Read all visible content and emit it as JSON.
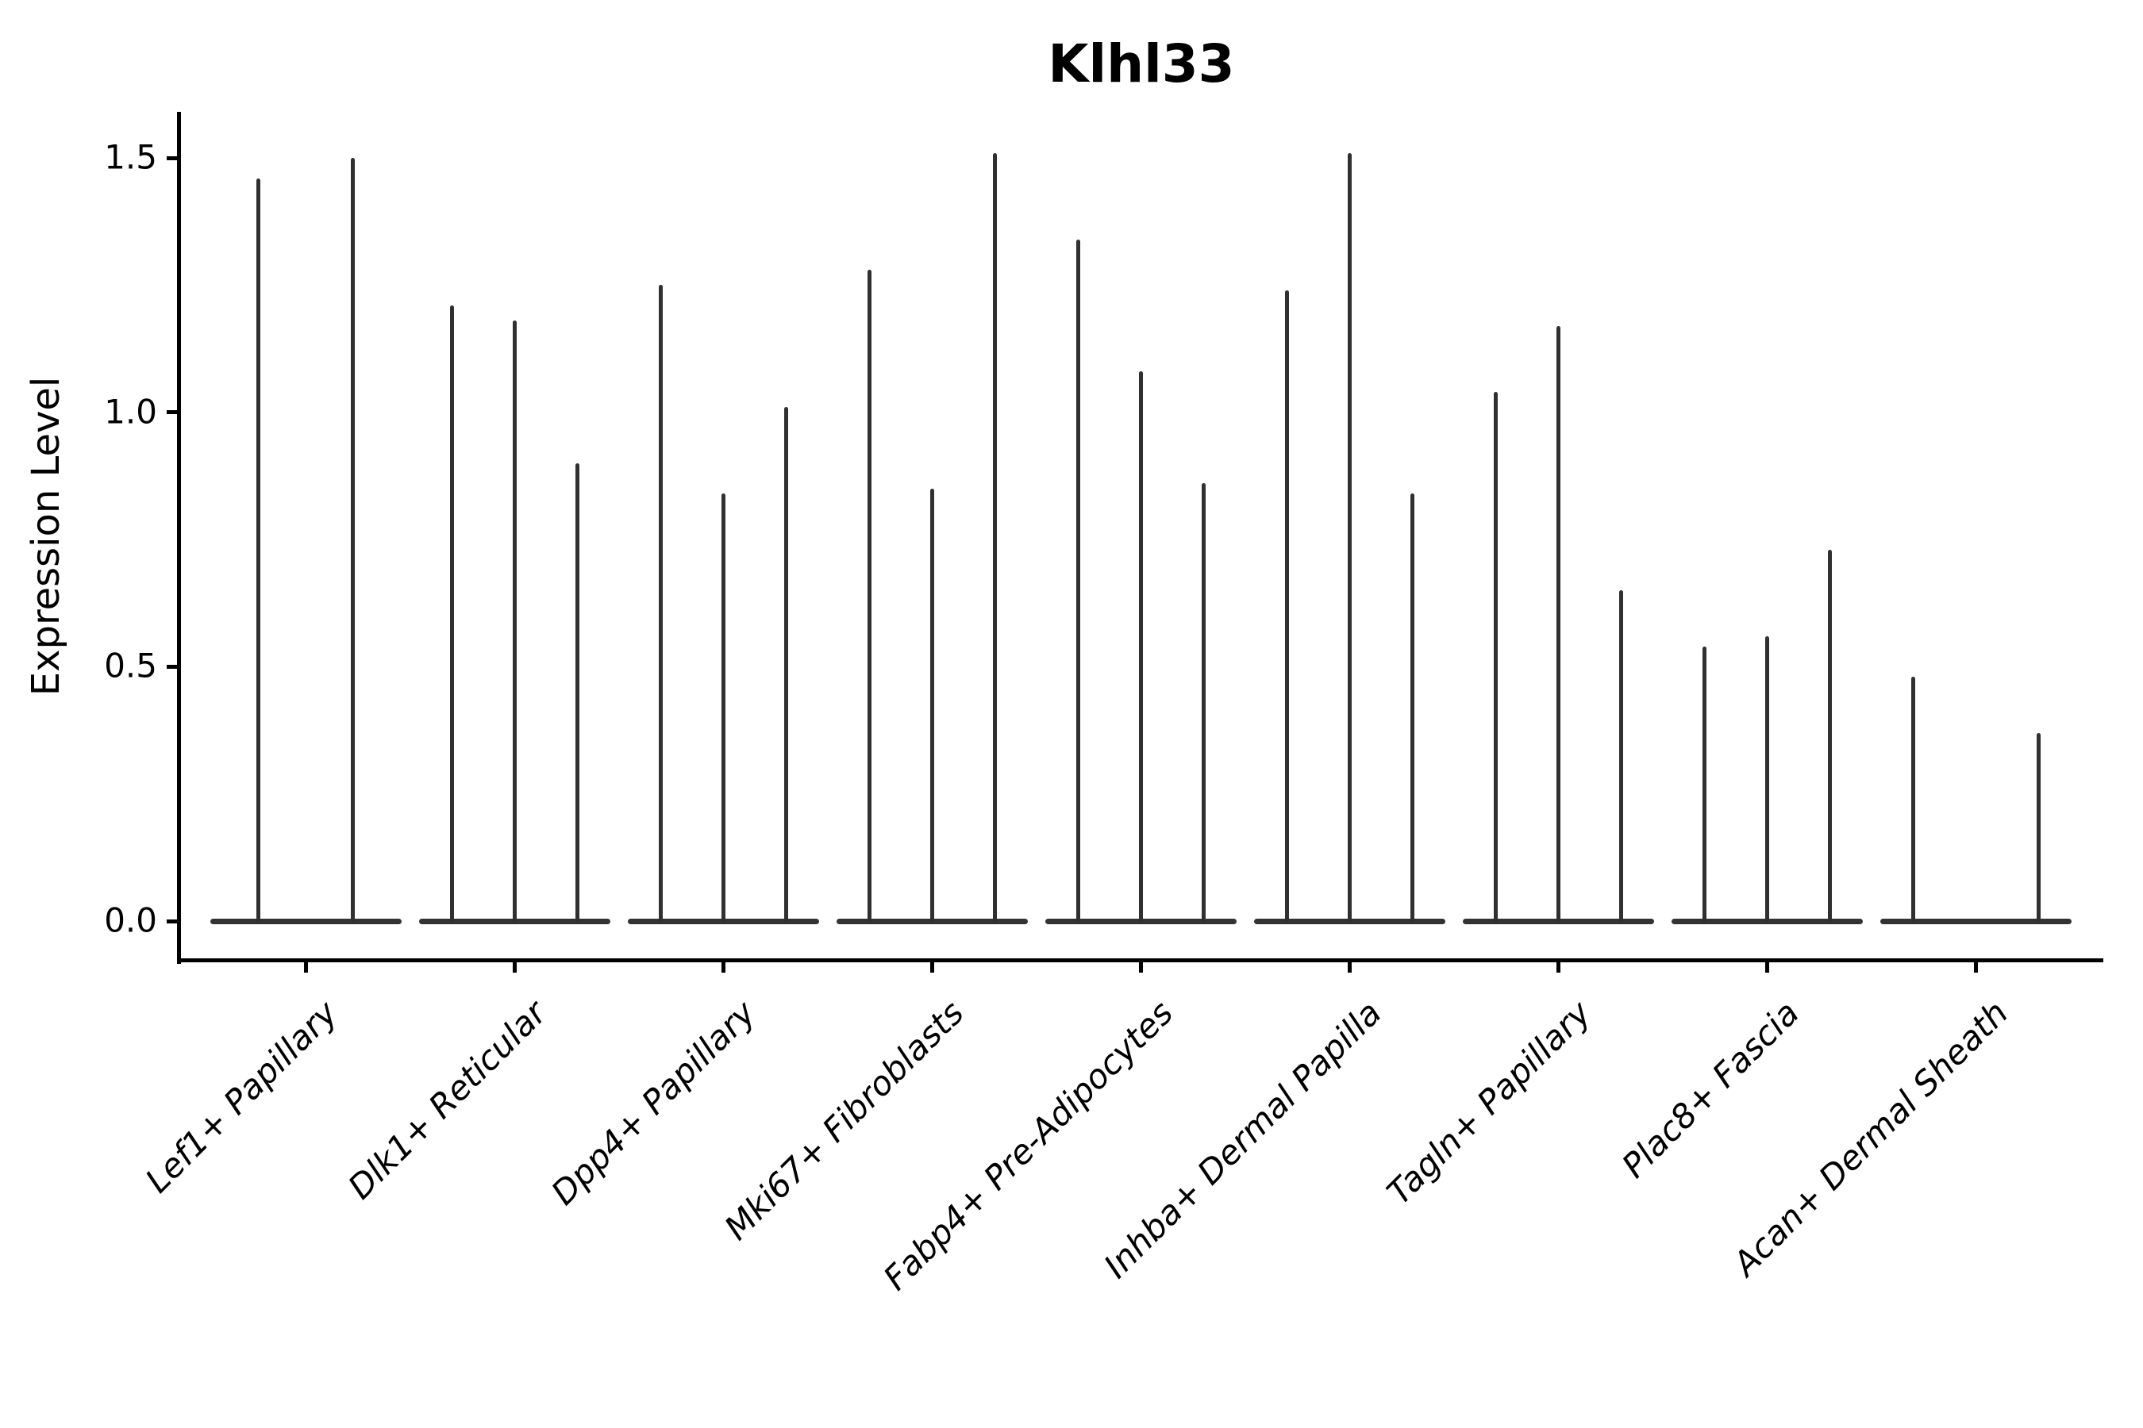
{
  "figure": {
    "title": "Klhl33",
    "ylabel": "Expression Level"
  },
  "chart_data": {
    "type": "violin",
    "title": "Klhl33",
    "xlabel": "",
    "ylabel": "Expression Level",
    "ylim": [
      0,
      1.58
    ],
    "yticks": [
      0.0,
      0.5,
      1.0,
      1.5
    ],
    "ytick_labels": [
      "0.0",
      "0.5",
      "1.0",
      "1.5"
    ],
    "grid": false,
    "legend": "none",
    "line_color": "#303030",
    "axis_color": "#000000",
    "categories": [
      "Lef1+ Papillary",
      "Dlk1+ Reticular",
      "Dpp4+ Papillary",
      "Mki67+ Fibroblasts",
      "Fabp4+ Pre-Adipocytes",
      "Inhba+ Dermal Papilla",
      "Tagln+ Papillary",
      "Plac8+ Fascia",
      "Acan+ Dermal Sheath"
    ],
    "groups": [
      {
        "category": "Lef1+ Papillary",
        "violin_maxima": [
          1.46,
          1.5
        ]
      },
      {
        "category": "Dlk1+ Reticular",
        "violin_maxima": [
          1.21,
          1.18,
          0.9
        ]
      },
      {
        "category": "Dpp4+ Papillary",
        "violin_maxima": [
          1.25,
          0.84,
          1.01
        ]
      },
      {
        "category": "Mki67+ Fibroblasts",
        "violin_maxima": [
          1.28,
          0.85,
          1.51
        ]
      },
      {
        "category": "Fabp4+ Pre-Adipocytes",
        "violin_maxima": [
          1.34,
          1.08,
          0.86
        ]
      },
      {
        "category": "Inhba+ Dermal Papilla",
        "violin_maxima": [
          1.24,
          1.51,
          0.84
        ]
      },
      {
        "category": "Tagln+ Papillary",
        "violin_maxima": [
          1.04,
          1.17,
          0.65
        ]
      },
      {
        "category": "Plac8+ Fascia",
        "violin_maxima": [
          0.54,
          0.56,
          0.73
        ]
      },
      {
        "category": "Acan+ Dermal Sheath",
        "violin_maxima": [
          0.48,
          0.0,
          0.37
        ]
      }
    ],
    "note": "Each violin collapses to a flat base at expression 0 with a thin spike rising to its maximum value."
  }
}
